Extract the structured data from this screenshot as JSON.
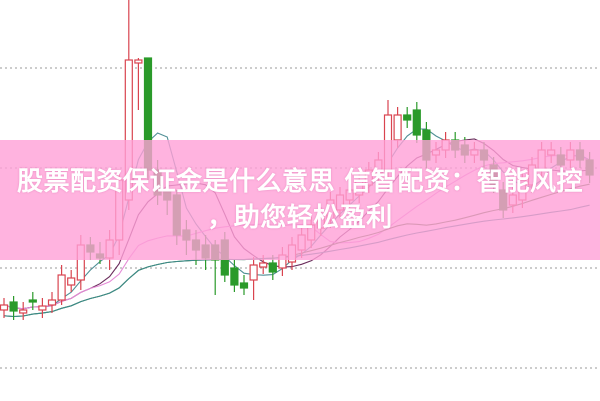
{
  "banner": {
    "line1": "股票配资保证金是什么意思 信智配资：智能风控",
    "line2": "，助您轻松盈利",
    "background_color": "#ffa0d7"
  },
  "chart_data": {
    "type": "candlestick",
    "title": "",
    "xlabel": "",
    "ylabel": "",
    "ylim": [
      0,
      40
    ],
    "grid": "horizontal dotted",
    "up_color": "#d9444f",
    "down_color": "#2a9a2a",
    "ohlc": [
      [
        9.0,
        9.5,
        10.2,
        8.2
      ],
      [
        9.8,
        8.9,
        10.4,
        8.0
      ],
      [
        8.7,
        9.0,
        9.8,
        8.0
      ],
      [
        10.0,
        9.8,
        10.8,
        9.0
      ],
      [
        9.0,
        9.4,
        10.2,
        8.2
      ],
      [
        9.5,
        10.0,
        10.8,
        8.7
      ],
      [
        10.0,
        12.5,
        13.5,
        9.5
      ],
      [
        11.5,
        12.2,
        13.0,
        10.8
      ],
      [
        12.0,
        15.5,
        16.5,
        11.0
      ],
      [
        15.5,
        14.8,
        16.3,
        14.0
      ],
      [
        14.6,
        14.2,
        15.8,
        13.6
      ],
      [
        14.2,
        16.0,
        17.0,
        13.0
      ],
      [
        16.0,
        22.0,
        23.0,
        14.5
      ],
      [
        20.0,
        34.0,
        40.0,
        19.0
      ],
      [
        33.7,
        34.0,
        34.2,
        29.0
      ],
      [
        34.2,
        23.0,
        34.2,
        22.0
      ],
      [
        23.0,
        20.5,
        24.0,
        19.5
      ],
      [
        21.0,
        20.0,
        22.0,
        18.5
      ],
      [
        20.5,
        16.5,
        21.0,
        15.5
      ],
      [
        17.0,
        16.0,
        18.0,
        14.5
      ],
      [
        16.0,
        15.0,
        17.0,
        13.5
      ],
      [
        15.5,
        14.2,
        16.5,
        13.0
      ],
      [
        15.5,
        14.0,
        16.0,
        10.5
      ],
      [
        16.0,
        12.5,
        16.8,
        11.8
      ],
      [
        13.2,
        11.5,
        14.0,
        10.8
      ],
      [
        11.7,
        11.2,
        12.5,
        10.5
      ],
      [
        12.0,
        13.5,
        14.3,
        10.0
      ],
      [
        13.3,
        13.7,
        14.5,
        12.6
      ],
      [
        13.7,
        12.8,
        14.5,
        12.0
      ],
      [
        13.2,
        14.5,
        15.3,
        12.4
      ],
      [
        13.8,
        15.5,
        16.3,
        13.0
      ],
      [
        15.0,
        16.5,
        17.3,
        14.2
      ],
      [
        16.0,
        17.5,
        18.3,
        15.2
      ],
      [
        17.2,
        18.5,
        19.3,
        16.4
      ],
      [
        18.0,
        20.0,
        20.8,
        17.2
      ],
      [
        19.0,
        20.5,
        21.3,
        18.2
      ],
      [
        20.0,
        21.0,
        21.8,
        19.2
      ],
      [
        20.5,
        22.0,
        22.8,
        19.7
      ],
      [
        21.5,
        23.0,
        23.8,
        20.7
      ],
      [
        22.5,
        24.0,
        24.8,
        21.7
      ],
      [
        23.0,
        28.5,
        30.0,
        22.0
      ],
      [
        26.0,
        28.5,
        29.3,
        25.2
      ],
      [
        28.5,
        28.0,
        29.3,
        27.2
      ],
      [
        29.0,
        26.5,
        29.8,
        25.7
      ],
      [
        27.0,
        24.0,
        27.8,
        23.2
      ],
      [
        24.5,
        25.0,
        25.8,
        23.7
      ],
      [
        25.0,
        26.0,
        26.8,
        24.2
      ],
      [
        26.0,
        25.0,
        26.8,
        24.2
      ],
      [
        25.5,
        24.5,
        26.3,
        23.7
      ],
      [
        24.5,
        25.0,
        25.8,
        23.7
      ],
      [
        25.0,
        24.0,
        25.8,
        23.2
      ],
      [
        23.5,
        21.5,
        24.3,
        20.7
      ],
      [
        21.0,
        19.0,
        21.8,
        18.2
      ],
      [
        19.5,
        20.5,
        21.3,
        18.7
      ],
      [
        20.0,
        22.0,
        22.8,
        19.2
      ],
      [
        21.5,
        23.5,
        24.3,
        20.7
      ],
      [
        23.0,
        25.0,
        25.8,
        22.2
      ],
      [
        24.5,
        25.0,
        25.8,
        23.7
      ],
      [
        24.5,
        23.5,
        25.3,
        22.7
      ],
      [
        24.0,
        25.0,
        25.8,
        23.2
      ],
      [
        25.0,
        24.0,
        25.8,
        23.2
      ],
      [
        24.0,
        22.5,
        24.8,
        21.7
      ]
    ],
    "moving_averages": [
      {
        "period": 5,
        "color": "#4f8f95"
      },
      {
        "period": 10,
        "color": "#6b2d5c"
      },
      {
        "period": 20,
        "color": "#e58ad6"
      },
      {
        "period": 30,
        "color": "#4e7a3a"
      },
      {
        "period": 60,
        "color": "#3a8a8a"
      }
    ]
  }
}
